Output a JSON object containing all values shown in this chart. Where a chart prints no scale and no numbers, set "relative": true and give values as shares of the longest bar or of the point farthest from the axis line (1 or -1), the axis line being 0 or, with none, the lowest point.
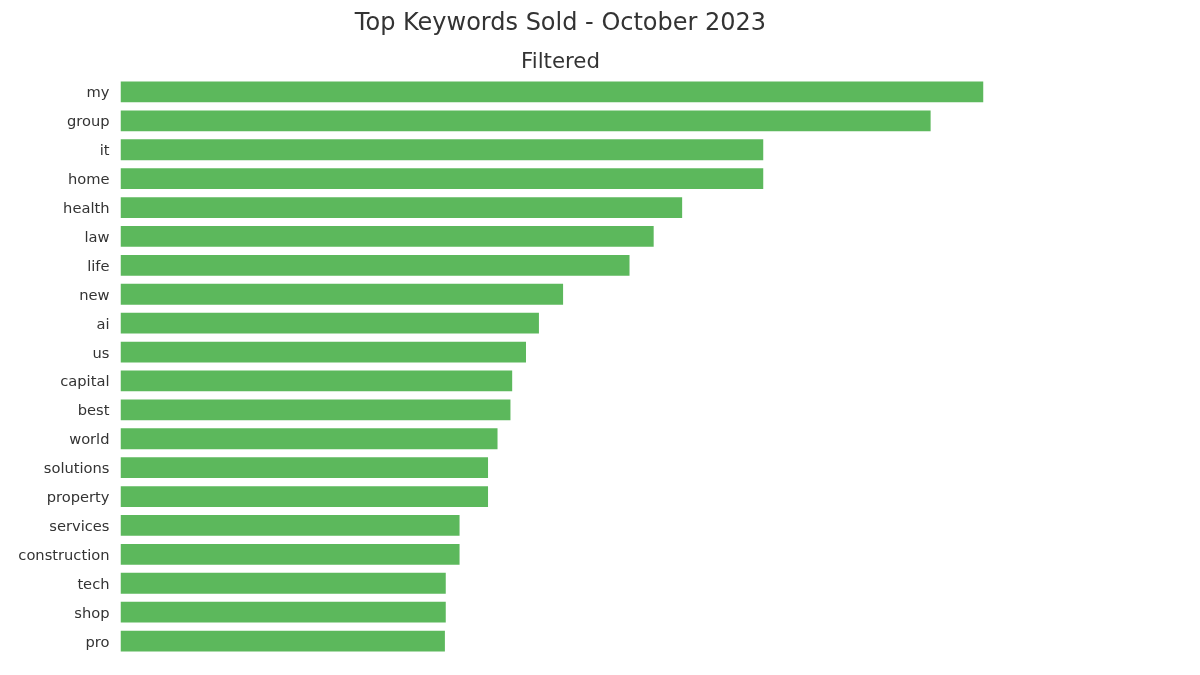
{
  "chart_data": {
    "type": "bar",
    "orientation": "horizontal",
    "relative": true,
    "title": "Top Keywords Sold - October 2023",
    "subtitle": "Filtered",
    "color": "#5cb85c",
    "grid": false,
    "categories": [
      "my",
      "group",
      "it",
      "home",
      "health",
      "law",
      "life",
      "new",
      "ai",
      "us",
      "capital",
      "best",
      "world",
      "solutions",
      "property",
      "services",
      "construction",
      "tech",
      "shop",
      "pro"
    ],
    "values": [
      1,
      0.939,
      0.745,
      0.745,
      0.651,
      0.618,
      0.59,
      0.513,
      0.485,
      0.47,
      0.454,
      0.452,
      0.437,
      0.426,
      0.426,
      0.393,
      0.393,
      0.377,
      0.377,
      0.376
    ]
  }
}
